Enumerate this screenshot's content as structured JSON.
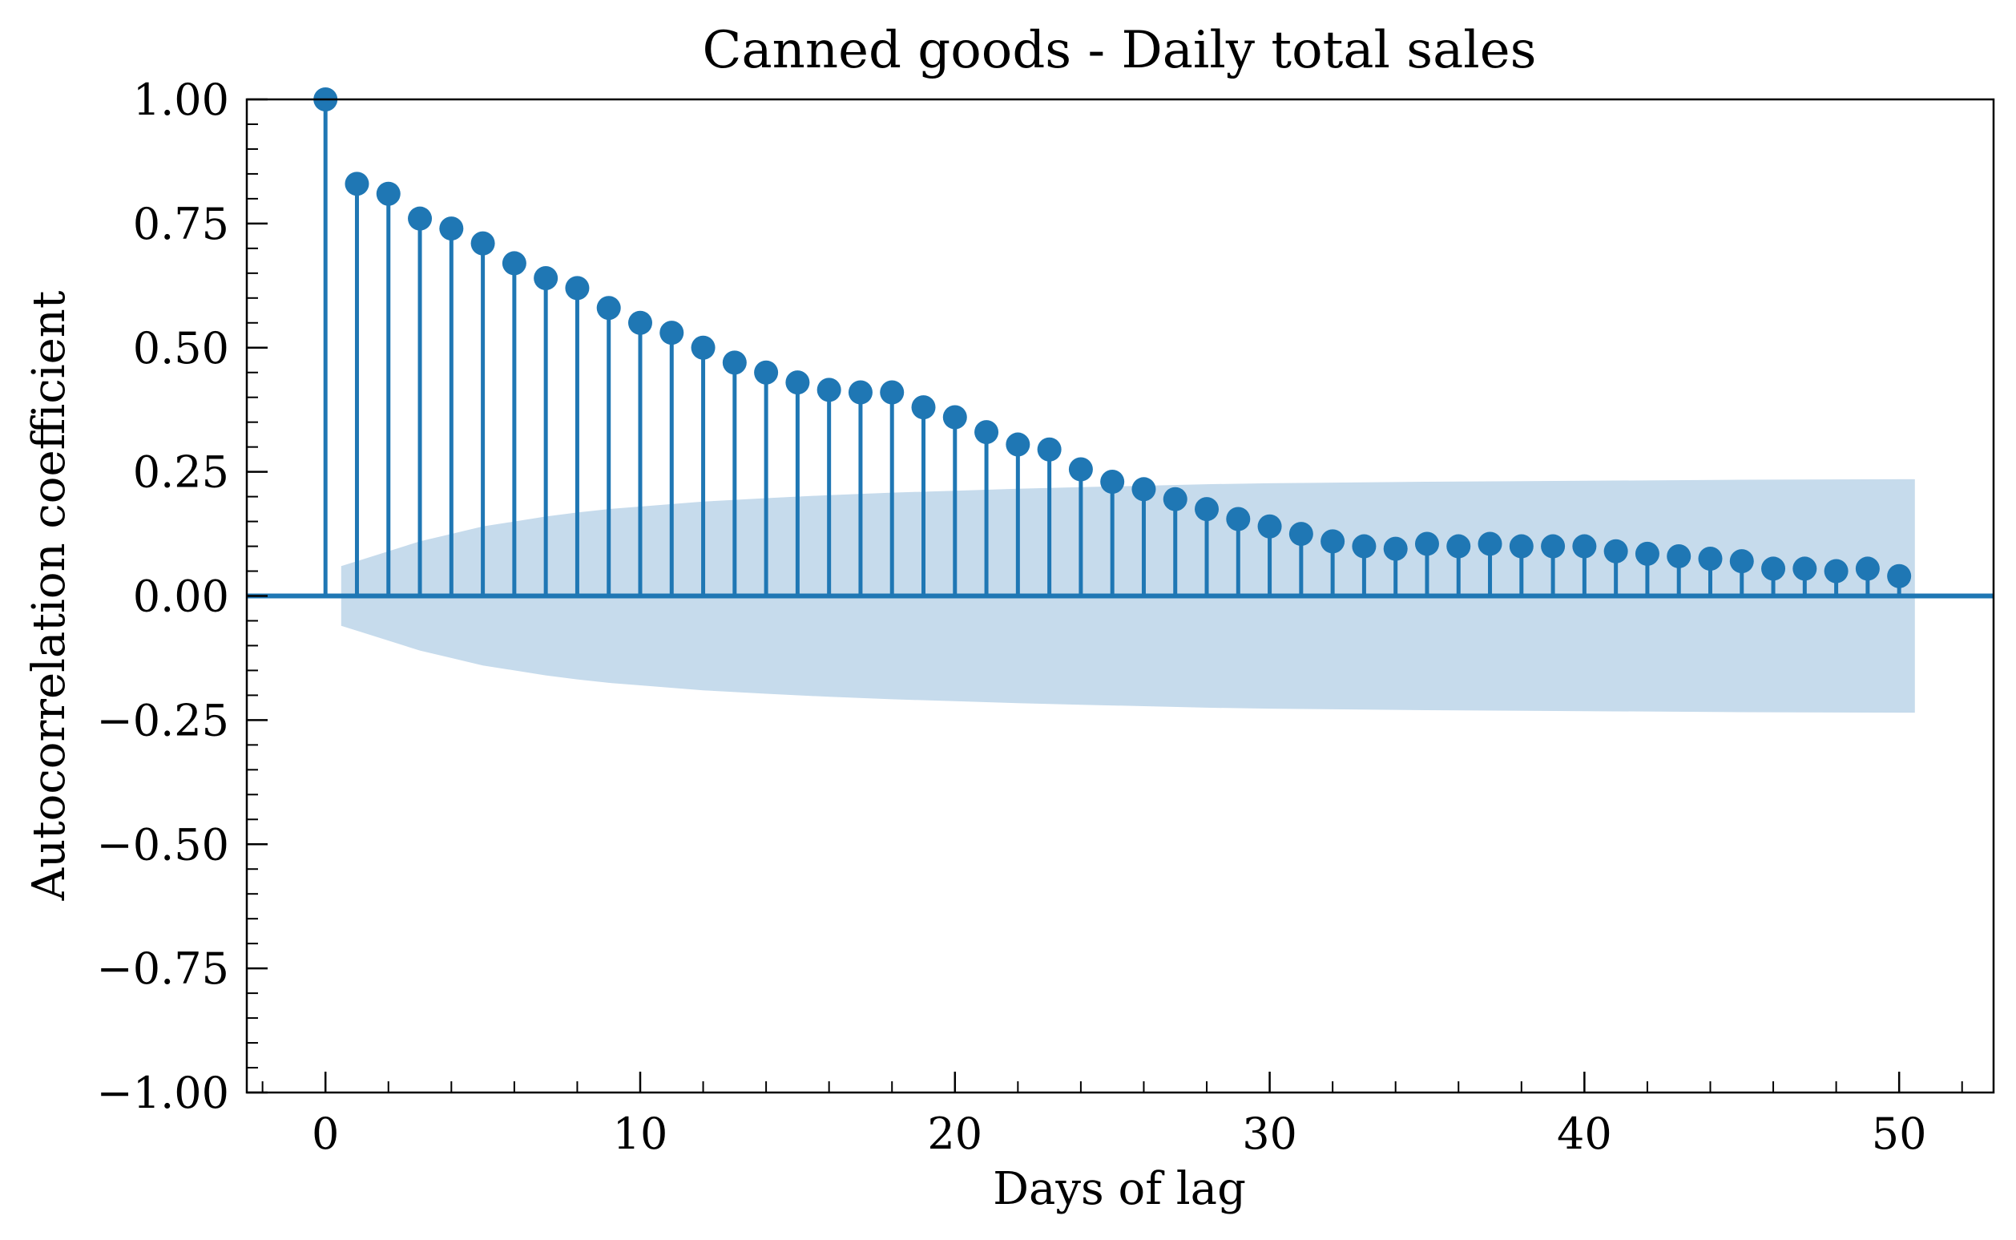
{
  "chart_data": {
    "type": "stem",
    "title": "Canned goods - Daily total sales",
    "xlabel": "Days of lag",
    "ylabel": "Autocorrelation coefficient",
    "xlim": [
      -2.5,
      53
    ],
    "ylim": [
      -1.0,
      1.0
    ],
    "x_ticks": [
      0,
      10,
      20,
      30,
      40,
      50
    ],
    "x_tick_labels": [
      "0",
      "10",
      "20",
      "30",
      "40",
      "50"
    ],
    "y_ticks": [
      -1.0,
      -0.75,
      -0.5,
      -0.25,
      0.0,
      0.25,
      0.5,
      0.75,
      1.0
    ],
    "y_tick_labels": [
      "−1.00",
      "−0.75",
      "−0.50",
      "−0.25",
      "0.00",
      "0.25",
      "0.50",
      "0.75",
      "1.00"
    ],
    "grid": false,
    "legend": "none",
    "series": [
      {
        "lags": [
          0,
          1,
          2,
          3,
          4,
          5,
          6,
          7,
          8,
          9,
          10,
          11,
          12,
          13,
          14,
          15,
          16,
          17,
          18,
          19,
          20,
          21,
          22,
          23,
          24,
          25,
          26,
          27,
          28,
          29,
          30,
          31,
          32,
          33,
          34,
          35,
          36,
          37,
          38,
          39,
          40,
          41,
          42,
          43,
          44,
          45,
          46,
          47,
          48,
          49,
          50
        ],
        "values": [
          1.0,
          0.83,
          0.81,
          0.76,
          0.74,
          0.71,
          0.67,
          0.64,
          0.62,
          0.58,
          0.55,
          0.53,
          0.5,
          0.47,
          0.45,
          0.43,
          0.415,
          0.41,
          0.41,
          0.38,
          0.36,
          0.33,
          0.305,
          0.295,
          0.255,
          0.23,
          0.215,
          0.195,
          0.175,
          0.155,
          0.14,
          0.125,
          0.11,
          0.1,
          0.095,
          0.105,
          0.1,
          0.105,
          0.1,
          0.1,
          0.1,
          0.09,
          0.085,
          0.08,
          0.075,
          0.07,
          0.055,
          0.055,
          0.05,
          0.055,
          0.04
        ]
      }
    ],
    "confidence_band": {
      "lags": [
        0.5,
        1,
        2,
        3,
        4,
        5,
        6,
        7,
        8,
        9,
        10,
        12,
        14,
        16,
        18,
        20,
        22,
        24,
        26,
        28,
        30,
        35,
        40,
        45,
        50,
        50.5
      ],
      "upper": [
        0.06,
        0.07,
        0.09,
        0.11,
        0.125,
        0.14,
        0.15,
        0.16,
        0.168,
        0.175,
        0.18,
        0.19,
        0.197,
        0.203,
        0.208,
        0.212,
        0.216,
        0.219,
        0.222,
        0.225,
        0.227,
        0.23,
        0.232,
        0.234,
        0.235,
        0.235
      ]
    },
    "colors": {
      "stem": "#1f77b4",
      "band": "#c6dbec",
      "baseline": "#1f77b4"
    }
  }
}
